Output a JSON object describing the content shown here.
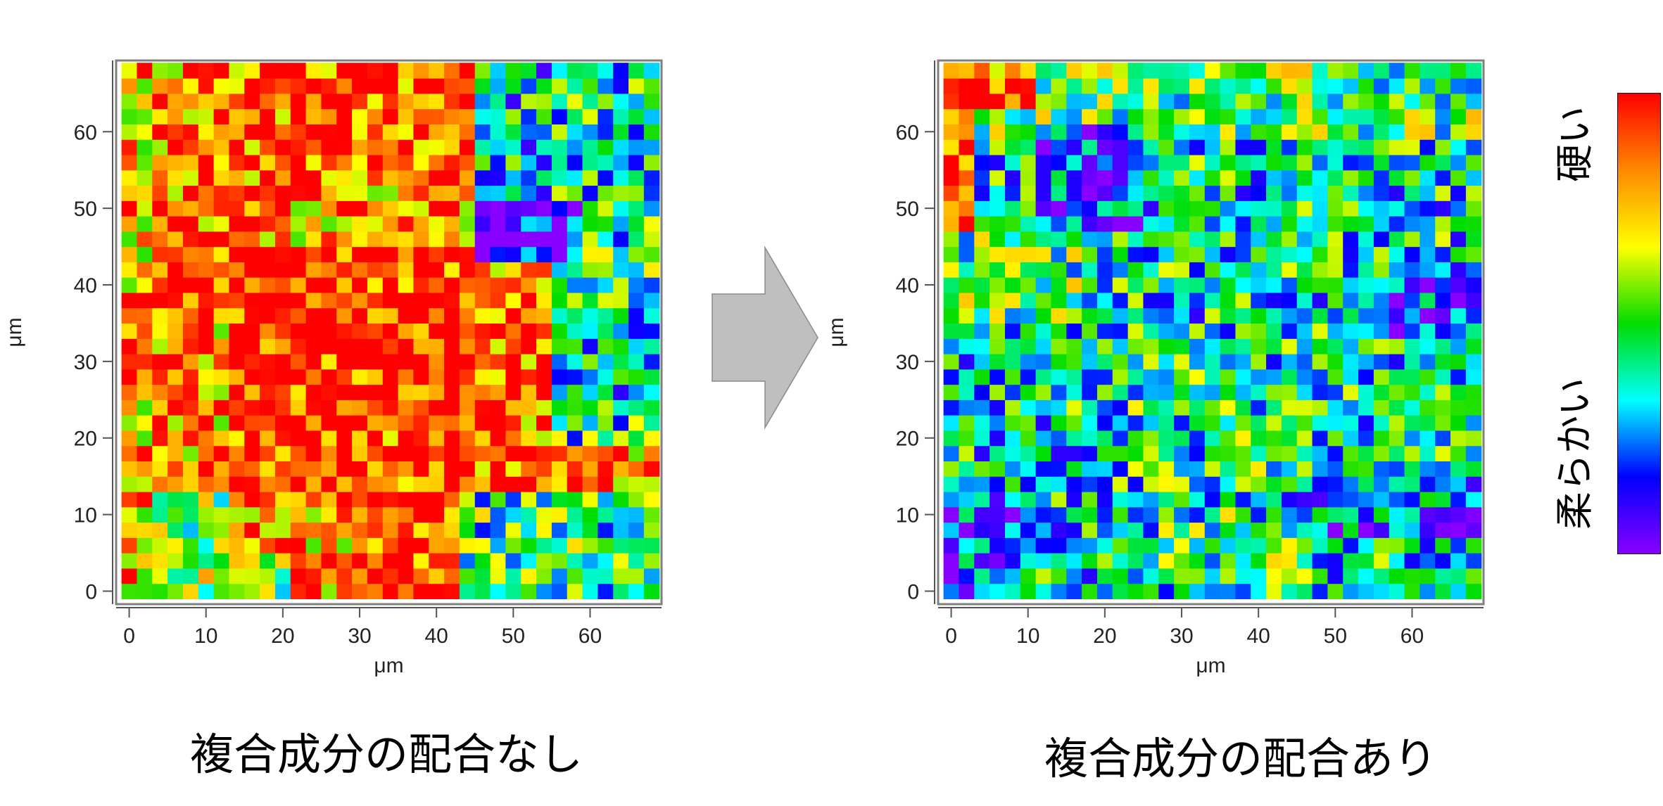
{
  "chart_data": [
    {
      "type": "heatmap",
      "title": "複合成分の配合なし",
      "xlabel": "μm",
      "ylabel": "μm",
      "xlim": [
        -1.7,
        69.3
      ],
      "ylim": [
        -1.7,
        69.3
      ],
      "xticks": [
        0,
        10,
        20,
        30,
        40,
        50,
        60
      ],
      "yticks": [
        0,
        10,
        20,
        30,
        40,
        50,
        60
      ],
      "grid_cols": 35,
      "grid_rows": 35,
      "cell_size_um": 2,
      "value_scale": "0 = 柔らかい (violet) → 1 = 硬い (red)",
      "summary": "mostly hard: red/orange/yellow dominate the left and central regions; green/cyan/blue patches at the right edge and lower-left corner; violet patch near x≈46–60, y≈43–51",
      "regions": [
        {
          "x": [
            -2,
            70
          ],
          "y": [
            -2,
            70
          ],
          "value": 0.82
        },
        {
          "x": [
            14,
            46
          ],
          "y": [
            14,
            46
          ],
          "value": 0.95
        },
        {
          "x": [
            -2,
            12
          ],
          "y": [
            20,
            58
          ],
          "value": 0.88
        },
        {
          "x": [
            12,
            46
          ],
          "y": [
            54,
            70
          ],
          "value": 0.9
        },
        {
          "x": [
            30,
            44
          ],
          "y": [
            -2,
            22
          ],
          "value": 0.9
        },
        {
          "x": [
            46,
            58
          ],
          "y": [
            8,
            46
          ],
          "value": 0.88
        },
        {
          "x": [
            46,
            70
          ],
          "y": [
            48,
            70
          ],
          "value": 0.35
        },
        {
          "x": [
            56,
            70
          ],
          "y": [
            20,
            70
          ],
          "value": 0.42
        },
        {
          "x": [
            58,
            70
          ],
          "y": [
            24,
            36
          ],
          "value": 0.35
        },
        {
          "x": [
            44,
            70
          ],
          "y": [
            -2,
            14
          ],
          "value": 0.45
        },
        {
          "x": [
            -2,
            14
          ],
          "y": [
            -2,
            14
          ],
          "value": 0.5
        },
        {
          "x": [
            10,
            22
          ],
          "y": [
            -2,
            6
          ],
          "value": 0.55
        },
        {
          "x": [
            46,
            60
          ],
          "y": [
            43,
            51
          ],
          "value": 0.06
        },
        {
          "x": [
            -2,
            4
          ],
          "y": [
            -2,
            70
          ],
          "value": 0.8
        }
      ]
    },
    {
      "type": "heatmap",
      "title": "複合成分の配合あり",
      "xlabel": "μm",
      "ylabel": "μm",
      "xlim": [
        -1.7,
        69.3
      ],
      "ylim": [
        -1.7,
        69.3
      ],
      "xticks": [
        0,
        10,
        20,
        30,
        40,
        50,
        60
      ],
      "yticks": [
        0,
        10,
        20,
        30,
        40,
        50,
        60
      ],
      "grid_cols": 35,
      "grid_rows": 35,
      "cell_size_um": 2,
      "value_scale": "0 = 柔らかい (violet) → 1 = 硬い (red)",
      "summary": "mostly soft: cyan/blue dominate; red/orange strip along the left edge near y≈46–68; green band across the top; dark blue patches around x≈12–26, y≈50–62 and x≈52–70, y≈34–42",
      "regions": [
        {
          "x": [
            -2,
            70
          ],
          "y": [
            -2,
            70
          ],
          "value": 0.38
        },
        {
          "x": [
            -2,
            70
          ],
          "y": [
            60,
            70
          ],
          "value": 0.5
        },
        {
          "x": [
            -2,
            4
          ],
          "y": [
            46,
            68
          ],
          "value": 0.92
        },
        {
          "x": [
            -2,
            12
          ],
          "y": [
            64,
            70
          ],
          "value": 0.9
        },
        {
          "x": [
            12,
            26
          ],
          "y": [
            48,
            62
          ],
          "value": 0.2
        },
        {
          "x": [
            52,
            70
          ],
          "y": [
            34,
            42
          ],
          "value": 0.18
        },
        {
          "x": [
            -2,
            10
          ],
          "y": [
            -2,
            14
          ],
          "value": 0.22
        },
        {
          "x": [
            46,
            70
          ],
          "y": [
            8,
            16
          ],
          "value": 0.25
        },
        {
          "x": [
            20,
            46
          ],
          "y": [
            14,
            30
          ],
          "value": 0.42
        },
        {
          "x": [
            -2,
            20
          ],
          "y": [
            36,
            48
          ],
          "value": 0.48
        },
        {
          "x": [
            28,
            48
          ],
          "y": [
            2,
            12
          ],
          "value": 0.45
        }
      ]
    }
  ],
  "colorbar": {
    "top_label": "硬い",
    "bottom_label": "柔らかい",
    "colors": [
      "#ff0000",
      "#ff8800",
      "#ffff00",
      "#00dd00",
      "#00ffff",
      "#0000ff",
      "#8800ff"
    ]
  },
  "arrow": {
    "icon": "right-arrow-icon",
    "color": "#bfbfbf"
  }
}
